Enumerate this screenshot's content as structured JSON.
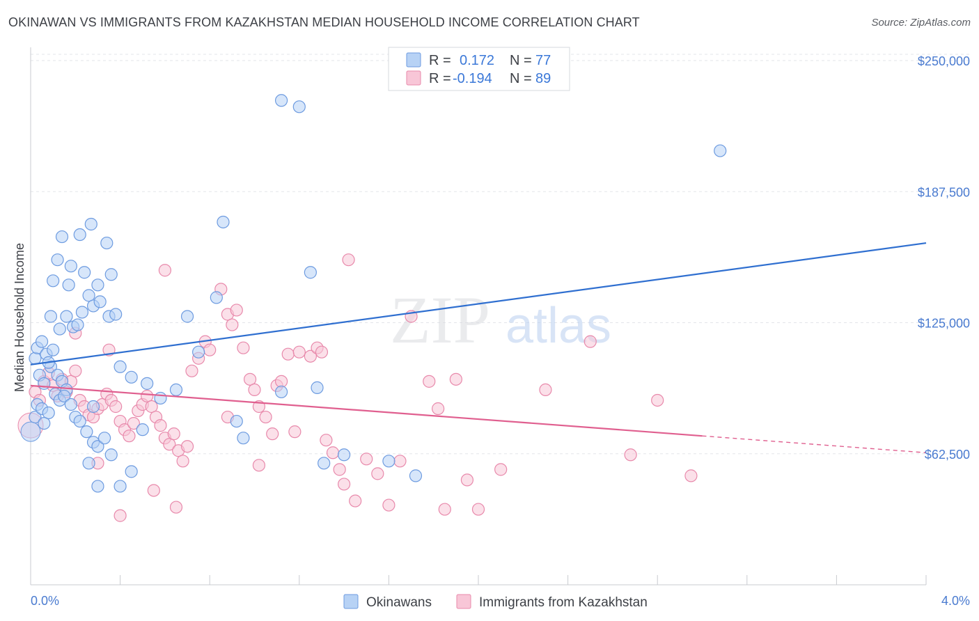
{
  "header": {
    "title": "OKINAWAN VS IMMIGRANTS FROM KAZAKHSTAN MEDIAN HOUSEHOLD INCOME CORRELATION CHART",
    "source": "Source: ZipAtlas.com"
  },
  "watermark": {
    "zip": "ZIP",
    "atlas": "atlas"
  },
  "colors": {
    "blue_fill": "#b7d2f5",
    "blue_stroke": "#6d9be0",
    "blue_line": "#2f6fd0",
    "pink_fill": "#f8c6d7",
    "pink_stroke": "#e889ab",
    "pink_line": "#e05f8f",
    "axis_label": "#4a7bd0",
    "grid": "#e3e5ea"
  },
  "chart_data": {
    "type": "scatter",
    "title": "OKINAWAN VS IMMIGRANTS FROM KAZAKHSTAN MEDIAN HOUSEHOLD INCOME CORRELATION CHART",
    "xlabel": "",
    "ylabel": "Median Household Income",
    "xlim": [
      0,
      4.0
    ],
    "ylim": [
      0,
      255000
    ],
    "x_tick_labels": [
      "0.0%",
      "4.0%"
    ],
    "y_ticks": [
      62500,
      125000,
      187500,
      250000
    ],
    "y_tick_labels": [
      "$62,500",
      "$125,000",
      "$187,500",
      "$250,000"
    ],
    "grid": true,
    "legend_position": "top-center",
    "stats": [
      {
        "r_label": "R =",
        "r_value": "0.172",
        "n_label": "N =",
        "n_value": "77"
      },
      {
        "r_label": "R =",
        "r_value": "-0.194",
        "n_label": "N =",
        "n_value": "89"
      }
    ],
    "series": [
      {
        "name": "Okinawans",
        "color": "#6d9be0",
        "trend": {
          "x": [
            0.0,
            4.0
          ],
          "y": [
            105000,
            163000
          ],
          "dashed_after": null
        },
        "points": [
          [
            0.02,
            108000
          ],
          [
            0.03,
            113000
          ],
          [
            0.05,
            116000
          ],
          [
            0.07,
            110000
          ],
          [
            0.04,
            100000
          ],
          [
            0.06,
            96000
          ],
          [
            0.09,
            104000
          ],
          [
            0.1,
            112000
          ],
          [
            0.08,
            106000
          ],
          [
            0.12,
            100000
          ],
          [
            0.14,
            97000
          ],
          [
            0.16,
            93000
          ],
          [
            0.11,
            91000
          ],
          [
            0.13,
            88000
          ],
          [
            0.03,
            86000
          ],
          [
            0.02,
            80000
          ],
          [
            0.05,
            84000
          ],
          [
            0.08,
            82000
          ],
          [
            0.15,
            90000
          ],
          [
            0.06,
            77000
          ],
          [
            0.18,
            86000
          ],
          [
            0.2,
            80000
          ],
          [
            0.22,
            78000
          ],
          [
            0.25,
            73000
          ],
          [
            0.28,
            68000
          ],
          [
            0.3,
            66000
          ],
          [
            0.33,
            70000
          ],
          [
            0.36,
            62000
          ],
          [
            0.09,
            128000
          ],
          [
            0.13,
            122000
          ],
          [
            0.16,
            128000
          ],
          [
            0.19,
            123000
          ],
          [
            0.23,
            130000
          ],
          [
            0.26,
            138000
          ],
          [
            0.28,
            133000
          ],
          [
            0.31,
            135000
          ],
          [
            0.35,
            128000
          ],
          [
            0.38,
            129000
          ],
          [
            0.21,
            124000
          ],
          [
            0.1,
            145000
          ],
          [
            0.17,
            143000
          ],
          [
            0.24,
            149000
          ],
          [
            0.3,
            143000
          ],
          [
            0.36,
            148000
          ],
          [
            0.12,
            155000
          ],
          [
            0.14,
            166000
          ],
          [
            0.22,
            167000
          ],
          [
            0.27,
            172000
          ],
          [
            0.34,
            163000
          ],
          [
            0.18,
            152000
          ],
          [
            0.4,
            104000
          ],
          [
            0.45,
            99000
          ],
          [
            0.52,
            96000
          ],
          [
            0.58,
            89000
          ],
          [
            0.65,
            93000
          ],
          [
            0.7,
            128000
          ],
          [
            0.75,
            111000
          ],
          [
            0.83,
            137000
          ],
          [
            0.86,
            173000
          ],
          [
            0.92,
            78000
          ],
          [
            0.95,
            70000
          ],
          [
            1.12,
            231000
          ],
          [
            1.2,
            228000
          ],
          [
            1.12,
            92000
          ],
          [
            1.25,
            149000
          ],
          [
            1.28,
            94000
          ],
          [
            1.31,
            58000
          ],
          [
            1.4,
            62000
          ],
          [
            1.6,
            59000
          ],
          [
            1.72,
            52000
          ],
          [
            0.3,
            47000
          ],
          [
            0.4,
            47000
          ],
          [
            0.26,
            58000
          ],
          [
            0.28,
            85000
          ],
          [
            3.08,
            207000
          ],
          [
            0.5,
            74000
          ],
          [
            0.45,
            54000
          ]
        ]
      },
      {
        "name": "Immigrants from Kazakhstan",
        "color": "#e889ab",
        "trend": {
          "x": [
            0.0,
            3.0
          ],
          "y": [
            95000,
            71000
          ],
          "dashed_after": [
            4.0,
            63000
          ]
        },
        "points": [
          [
            0.02,
            92000
          ],
          [
            0.04,
            88000
          ],
          [
            0.06,
            97000
          ],
          [
            0.08,
            101000
          ],
          [
            0.1,
            95000
          ],
          [
            0.12,
            90000
          ],
          [
            0.14,
            98000
          ],
          [
            0.16,
            92000
          ],
          [
            0.18,
            97000
          ],
          [
            0.2,
            102000
          ],
          [
            0.22,
            88000
          ],
          [
            0.24,
            85000
          ],
          [
            0.26,
            81000
          ],
          [
            0.28,
            80000
          ],
          [
            0.3,
            84000
          ],
          [
            0.32,
            86000
          ],
          [
            0.34,
            91000
          ],
          [
            0.36,
            88000
          ],
          [
            0.38,
            85000
          ],
          [
            0.4,
            78000
          ],
          [
            0.42,
            74000
          ],
          [
            0.44,
            71000
          ],
          [
            0.46,
            77000
          ],
          [
            0.48,
            83000
          ],
          [
            0.5,
            86000
          ],
          [
            0.52,
            90000
          ],
          [
            0.54,
            85000
          ],
          [
            0.56,
            80000
          ],
          [
            0.58,
            76000
          ],
          [
            0.6,
            70000
          ],
          [
            0.62,
            67000
          ],
          [
            0.64,
            72000
          ],
          [
            0.66,
            64000
          ],
          [
            0.68,
            59000
          ],
          [
            0.7,
            66000
          ],
          [
            0.72,
            102000
          ],
          [
            0.75,
            108000
          ],
          [
            0.78,
            116000
          ],
          [
            0.8,
            112000
          ],
          [
            0.85,
            141000
          ],
          [
            0.88,
            129000
          ],
          [
            0.9,
            124000
          ],
          [
            0.92,
            131000
          ],
          [
            0.95,
            113000
          ],
          [
            0.98,
            98000
          ],
          [
            1.0,
            93000
          ],
          [
            1.02,
            85000
          ],
          [
            1.05,
            80000
          ],
          [
            1.08,
            72000
          ],
          [
            1.1,
            95000
          ],
          [
            1.12,
            97000
          ],
          [
            1.15,
            110000
          ],
          [
            1.2,
            111000
          ],
          [
            1.25,
            109000
          ],
          [
            1.28,
            113000
          ],
          [
            1.3,
            111000
          ],
          [
            1.32,
            69000
          ],
          [
            1.35,
            63000
          ],
          [
            1.38,
            55000
          ],
          [
            1.4,
            48000
          ],
          [
            1.45,
            40000
          ],
          [
            1.5,
            60000
          ],
          [
            1.55,
            53000
          ],
          [
            1.6,
            38000
          ],
          [
            1.65,
            59000
          ],
          [
            1.7,
            128000
          ],
          [
            1.78,
            97000
          ],
          [
            1.82,
            84000
          ],
          [
            1.85,
            36000
          ],
          [
            1.9,
            98000
          ],
          [
            1.95,
            50000
          ],
          [
            2.0,
            36000
          ],
          [
            2.1,
            55000
          ],
          [
            2.3,
            93000
          ],
          [
            2.5,
            116000
          ],
          [
            2.68,
            62000
          ],
          [
            2.8,
            88000
          ],
          [
            2.95,
            52000
          ],
          [
            0.3,
            58000
          ],
          [
            0.35,
            112000
          ],
          [
            0.4,
            33000
          ],
          [
            0.55,
            45000
          ],
          [
            0.6,
            150000
          ],
          [
            0.65,
            37000
          ],
          [
            0.88,
            80000
          ],
          [
            1.02,
            57000
          ],
          [
            1.18,
            73000
          ],
          [
            1.42,
            155000
          ],
          [
            0.2,
            120000
          ]
        ]
      }
    ]
  },
  "legend": {
    "items": [
      {
        "label": "Okinawans"
      },
      {
        "label": "Immigrants from Kazakhstan"
      }
    ]
  }
}
